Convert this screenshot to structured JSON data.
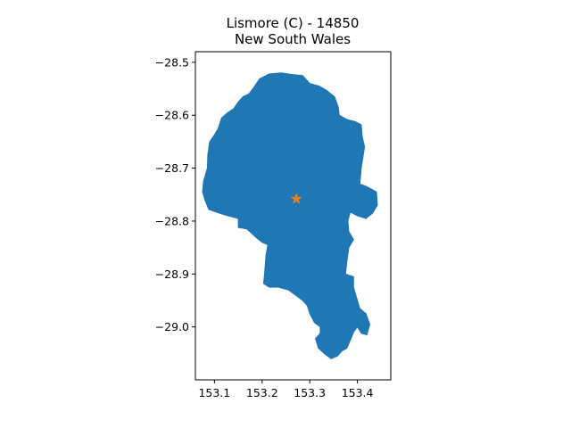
{
  "figure": {
    "title_line1": "Lismore (C) - 14850",
    "title_line2": "New South Wales"
  },
  "map": {
    "region_name": "Lismore (C)",
    "region_code": "14850",
    "state": "New South Wales",
    "fill_color": "#1f77b4",
    "marker": {
      "type": "star",
      "color": "#ff7f0e",
      "lon": 153.272,
      "lat": -28.757
    }
  },
  "chart_data": {
    "type": "map",
    "xlim": [
      153.06,
      153.47
    ],
    "ylim": [
      -29.1,
      -28.48
    ],
    "x_ticks": [
      {
        "value": 153.1,
        "label": "153.1"
      },
      {
        "value": 153.2,
        "label": "153.2"
      },
      {
        "value": 153.3,
        "label": "153.3"
      },
      {
        "value": 153.4,
        "label": "153.4"
      }
    ],
    "y_ticks": [
      {
        "value": -28.5,
        "label": "−28.5"
      },
      {
        "value": -28.6,
        "label": "−28.6"
      },
      {
        "value": -28.7,
        "label": "−28.7"
      },
      {
        "value": -28.8,
        "label": "−28.8"
      },
      {
        "value": -28.9,
        "label": "−28.9"
      },
      {
        "value": -29.0,
        "label": "−29.0"
      }
    ],
    "boundary": [
      [
        153.182,
        -28.548
      ],
      [
        153.195,
        -28.531
      ],
      [
        153.215,
        -28.522
      ],
      [
        153.24,
        -28.52
      ],
      [
        153.262,
        -28.523
      ],
      [
        153.285,
        -28.525
      ],
      [
        153.3,
        -28.54
      ],
      [
        153.32,
        -28.545
      ],
      [
        153.335,
        -28.553
      ],
      [
        153.352,
        -28.565
      ],
      [
        153.36,
        -28.585
      ],
      [
        153.362,
        -28.6
      ],
      [
        153.378,
        -28.608
      ],
      [
        153.395,
        -28.612
      ],
      [
        153.408,
        -28.618
      ],
      [
        153.41,
        -28.64
      ],
      [
        153.415,
        -28.66
      ],
      [
        153.408,
        -28.7
      ],
      [
        153.405,
        -28.73
      ],
      [
        153.42,
        -28.735
      ],
      [
        153.44,
        -28.745
      ],
      [
        153.442,
        -28.77
      ],
      [
        153.432,
        -28.785
      ],
      [
        153.418,
        -28.795
      ],
      [
        153.4,
        -28.79
      ],
      [
        153.385,
        -28.783
      ],
      [
        153.38,
        -28.8
      ],
      [
        153.382,
        -28.82
      ],
      [
        153.392,
        -28.835
      ],
      [
        153.382,
        -28.85
      ],
      [
        153.378,
        -28.875
      ],
      [
        153.375,
        -28.9
      ],
      [
        153.392,
        -28.905
      ],
      [
        153.392,
        -28.925
      ],
      [
        153.4,
        -28.95
      ],
      [
        153.405,
        -28.965
      ],
      [
        153.418,
        -28.975
      ],
      [
        153.426,
        -28.995
      ],
      [
        153.42,
        -29.015
      ],
      [
        153.408,
        -29.012
      ],
      [
        153.4,
        -29.0
      ],
      [
        153.393,
        -29.008
      ],
      [
        153.385,
        -29.025
      ],
      [
        153.378,
        -29.04
      ],
      [
        153.368,
        -29.045
      ],
      [
        153.358,
        -29.055
      ],
      [
        153.345,
        -29.06
      ],
      [
        153.33,
        -29.05
      ],
      [
        153.318,
        -29.04
      ],
      [
        153.312,
        -29.022
      ],
      [
        153.322,
        -29.012
      ],
      [
        153.322,
        -29.0
      ],
      [
        153.31,
        -28.992
      ],
      [
        153.3,
        -28.975
      ],
      [
        153.295,
        -28.96
      ],
      [
        153.285,
        -28.95
      ],
      [
        153.27,
        -28.94
      ],
      [
        153.255,
        -28.93
      ],
      [
        153.235,
        -28.925
      ],
      [
        153.215,
        -28.925
      ],
      [
        153.203,
        -28.918
      ],
      [
        153.205,
        -28.9
      ],
      [
        153.208,
        -28.865
      ],
      [
        153.212,
        -28.845
      ],
      [
        153.2,
        -28.84
      ],
      [
        153.19,
        -28.833
      ],
      [
        153.178,
        -28.823
      ],
      [
        153.168,
        -28.815
      ],
      [
        153.15,
        -28.812
      ],
      [
        153.15,
        -28.795
      ],
      [
        153.128,
        -28.79
      ],
      [
        153.11,
        -28.785
      ],
      [
        153.088,
        -28.778
      ],
      [
        153.08,
        -28.76
      ],
      [
        153.075,
        -28.745
      ],
      [
        153.077,
        -28.725
      ],
      [
        153.085,
        -28.7
      ],
      [
        153.086,
        -28.675
      ],
      [
        153.09,
        -28.65
      ],
      [
        153.1,
        -28.637
      ],
      [
        153.108,
        -28.625
      ],
      [
        153.115,
        -28.605
      ],
      [
        153.128,
        -28.595
      ],
      [
        153.14,
        -28.588
      ],
      [
        153.15,
        -28.575
      ],
      [
        153.16,
        -28.565
      ],
      [
        153.172,
        -28.56
      ]
    ]
  }
}
